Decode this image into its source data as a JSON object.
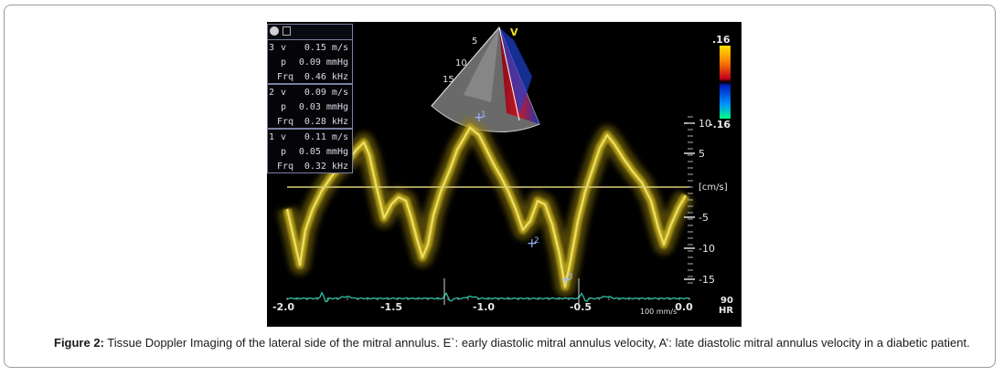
{
  "figure": {
    "label": "Figure 2:",
    "caption": " Tissue Doppler Imaging of the lateral side of the mitral annulus. E`: early diastolic mitral annulus velocity, A’: late diastolic mitral annulus velocity in a diabetic patient."
  },
  "measurements": [
    {
      "index": "3",
      "v": "0.15 m/s",
      "p": "0.09 mmHg",
      "frq": "0.46 kHz"
    },
    {
      "index": "2",
      "v": "0.09 m/s",
      "p": "0.03 mmHg",
      "frq": "0.28 kHz"
    },
    {
      "index": "1",
      "v": "0.11 m/s",
      "p": "0.05 mmHg",
      "frq": "0.32 kHz"
    }
  ],
  "measurement_keys": {
    "v": "v",
    "p": "p",
    "frq": "Frq"
  },
  "sector": {
    "mode_label": "V",
    "depth_labels": [
      "5",
      "10",
      "15"
    ]
  },
  "color_bar": {
    "max_label": ".16",
    "min_label": "-.16"
  },
  "velocity_axis": {
    "unit": "[cm/s]",
    "ticks": [
      "10",
      "5",
      "-5",
      "-10",
      "-15"
    ]
  },
  "time_axis": {
    "ticks": [
      "-2.0",
      "-1.5",
      "-1.0",
      "-0.5",
      "0.0"
    ],
    "sweep": "100 mm/s"
  },
  "heart_rate": {
    "value": "90",
    "unit": "HR"
  },
  "markers": [
    "1",
    "2",
    "3"
  ],
  "colors": {
    "doppler": "#c9b21a",
    "ecg": "#27b8a0",
    "baseline": "#d9cf7a",
    "marker": "#9fb7ff"
  }
}
